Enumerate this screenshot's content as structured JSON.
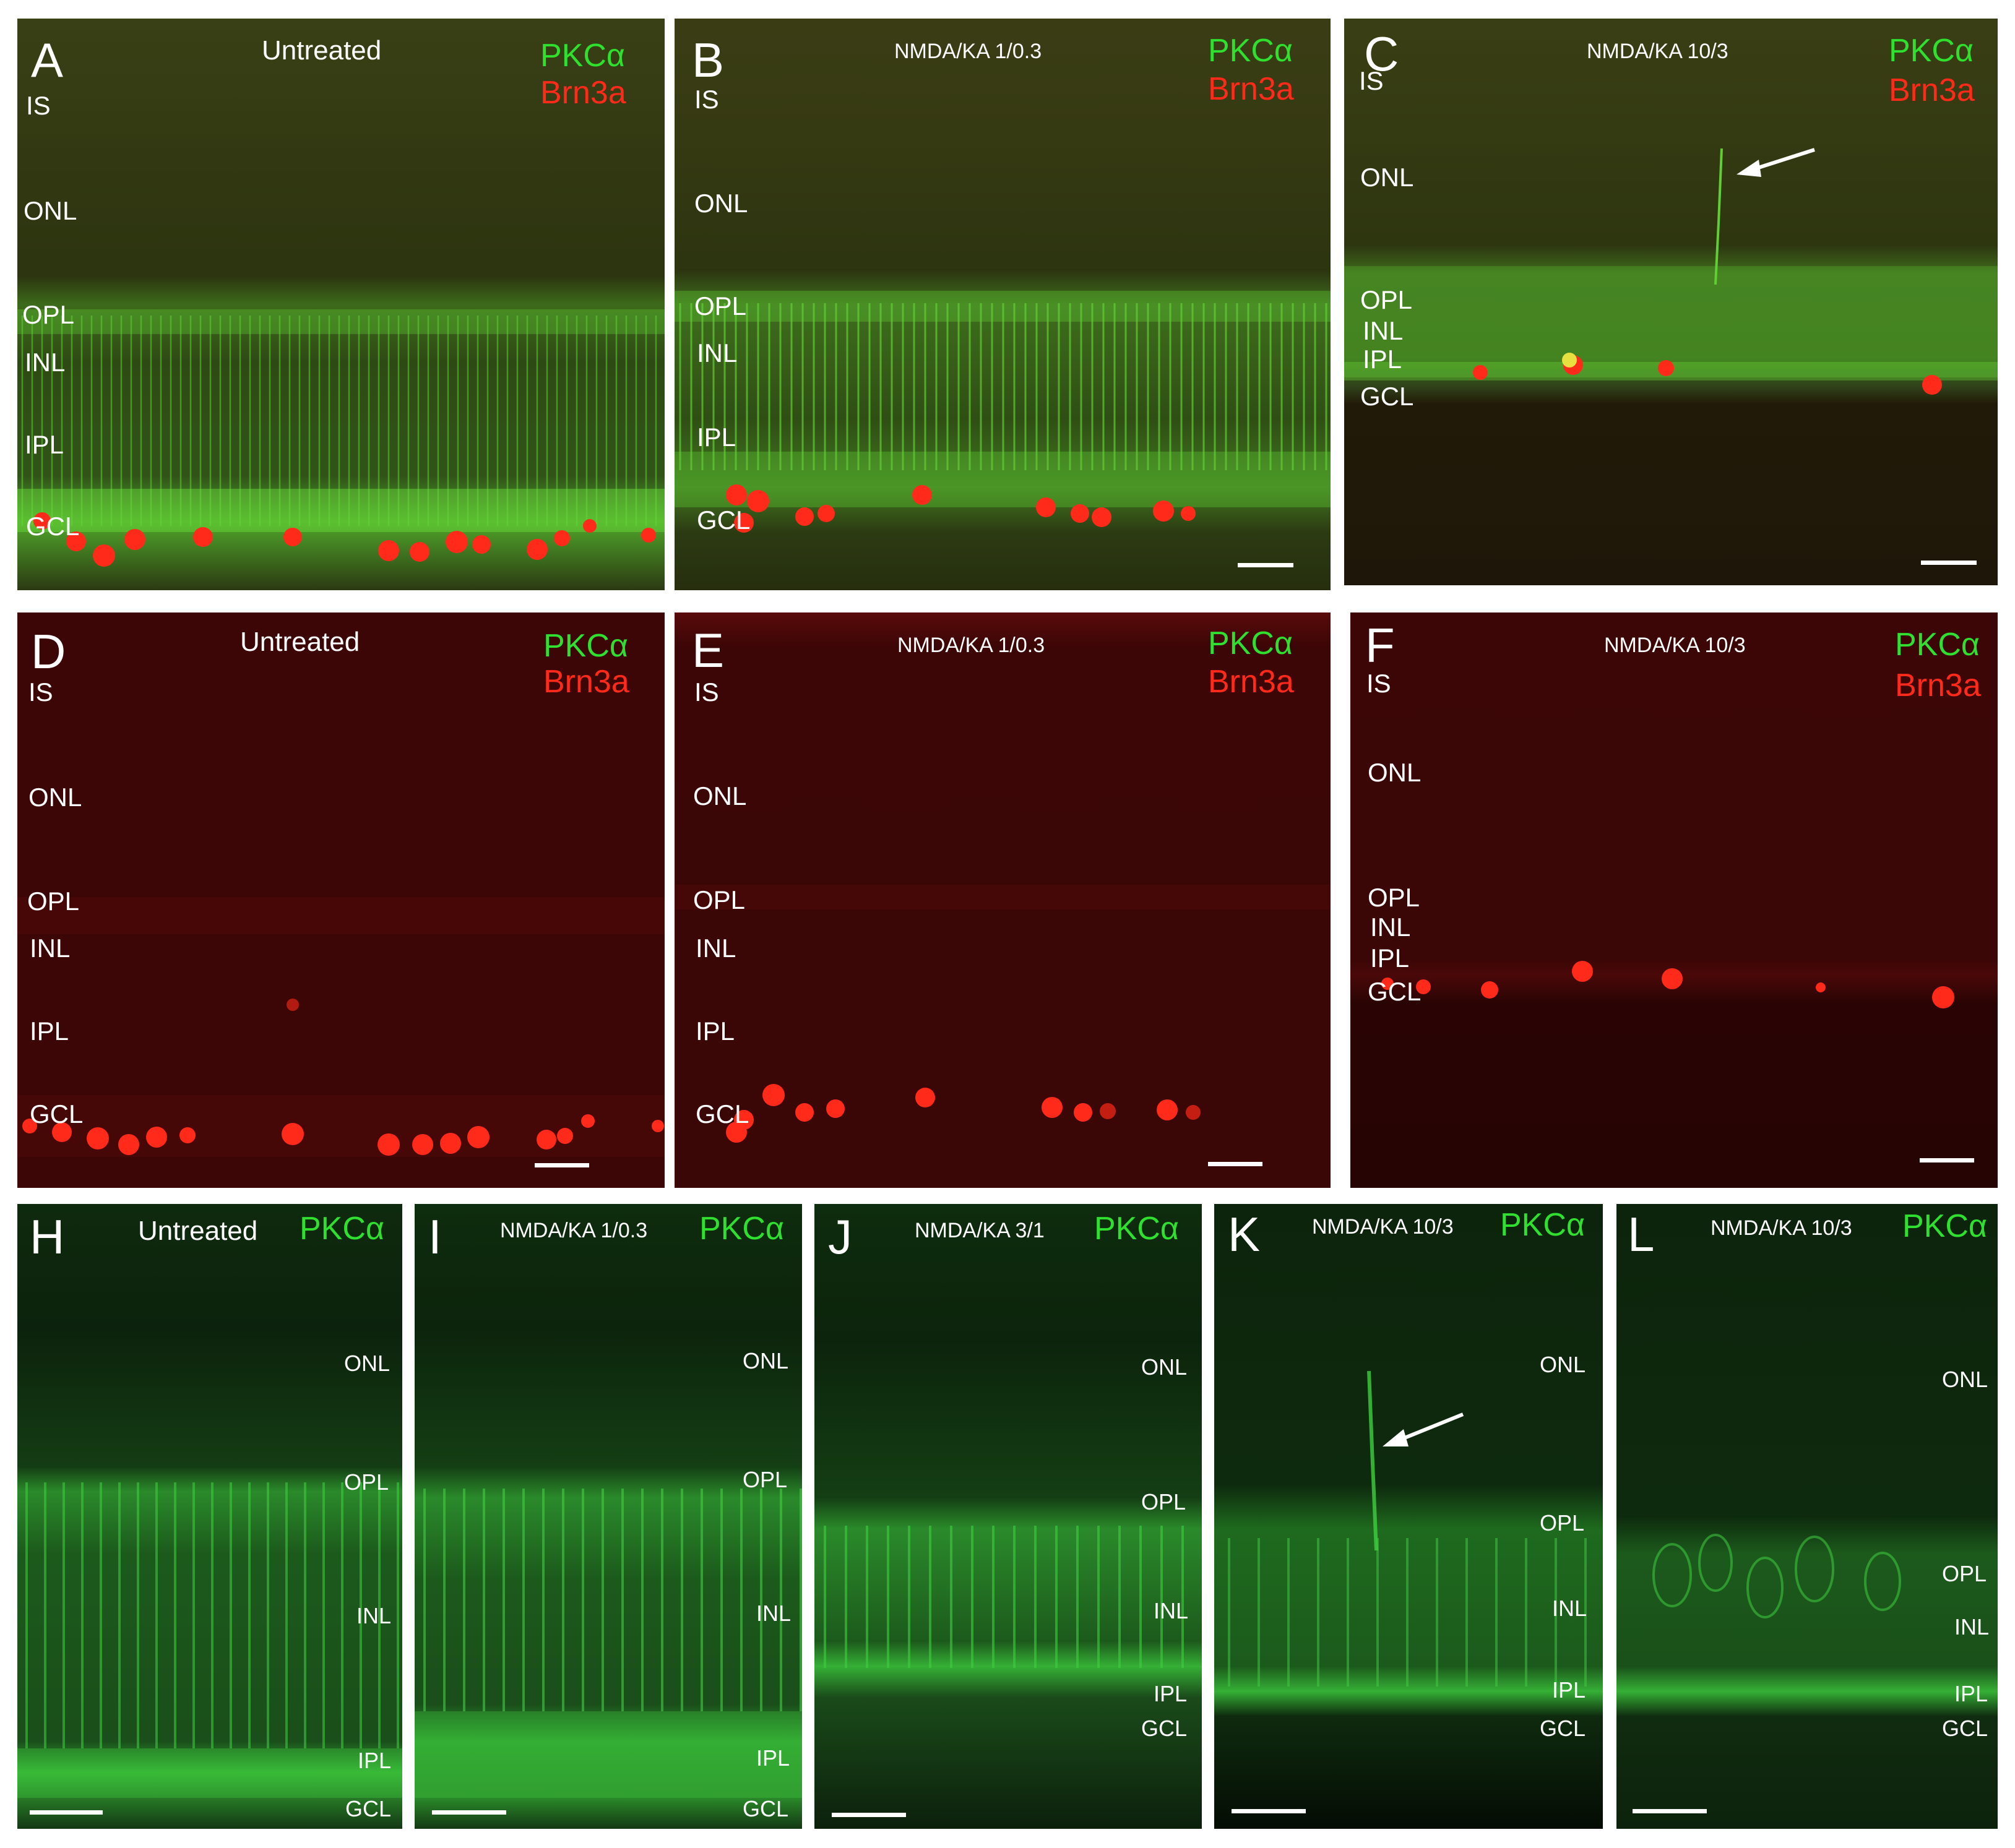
{
  "colors": {
    "pkc": "#2fe02f",
    "brn": "#ff2a1a",
    "text": "#ffffff"
  },
  "markers": {
    "pkc": "PKCα",
    "brn": "Brn3a"
  },
  "panels": {
    "A": {
      "letter": "A",
      "condition": "Untreated",
      "layers": {
        "IS": "IS",
        "ONL": "ONL",
        "OPL": "OPL",
        "INL": "INL",
        "IPL": "IPL",
        "GCL": "GCL"
      }
    },
    "B": {
      "letter": "B",
      "condition": "NMDA/KA 1/0.3",
      "layers": {
        "IS": "IS",
        "ONL": "ONL",
        "OPL": "OPL",
        "INL": "INL",
        "IPL": "IPL",
        "GCL": "GCL"
      }
    },
    "C": {
      "letter": "C",
      "condition": "NMDA/KA 10/3",
      "layers": {
        "IS": "IS",
        "ONL": "ONL",
        "OPL": "OPL",
        "INL": "INL",
        "IPL": "IPL",
        "GCL": "GCL"
      }
    },
    "D": {
      "letter": "D",
      "condition": "Untreated",
      "layers": {
        "IS": "IS",
        "ONL": "ONL",
        "OPL": "OPL",
        "INL": "INL",
        "IPL": "IPL",
        "GCL": "GCL"
      }
    },
    "E": {
      "letter": "E",
      "condition": "NMDA/KA 1/0.3",
      "layers": {
        "IS": "IS",
        "ONL": "ONL",
        "OPL": "OPL",
        "INL": "INL",
        "IPL": "IPL",
        "GCL": "GCL"
      }
    },
    "F": {
      "letter": "F",
      "condition": "NMDA/KA 10/3",
      "layers": {
        "IS": "IS",
        "ONL": "ONL",
        "OPL": "OPL",
        "INL": "INL",
        "IPL": "IPL",
        "GCL": "GCL"
      }
    },
    "H": {
      "letter": "H",
      "condition": "Untreated",
      "layers": {
        "ONL": "ONL",
        "OPL": "OPL",
        "INL": "INL",
        "IPL": "IPL",
        "GCL": "GCL"
      }
    },
    "I": {
      "letter": "I",
      "condition": "NMDA/KA 1/0.3",
      "layers": {
        "ONL": "ONL",
        "OPL": "OPL",
        "INL": "INL",
        "IPL": "IPL",
        "GCL": "GCL"
      }
    },
    "J": {
      "letter": "J",
      "condition": "NMDA/KA 3/1",
      "layers": {
        "ONL": "ONL",
        "OPL": "OPL",
        "INL": "INL",
        "IPL": "IPL",
        "GCL": "GCL"
      }
    },
    "K": {
      "letter": "K",
      "condition": "NMDA/KA 10/3",
      "layers": {
        "ONL": "ONL",
        "OPL": "OPL",
        "INL": "INL",
        "IPL": "IPL",
        "GCL": "GCL"
      }
    },
    "L": {
      "letter": "L",
      "condition": "NMDA/KA 10/3",
      "layers": {
        "ONL": "ONL",
        "OPL": "OPL",
        "INL": "INL",
        "IPL": "IPL",
        "GCL": "GCL"
      }
    }
  }
}
